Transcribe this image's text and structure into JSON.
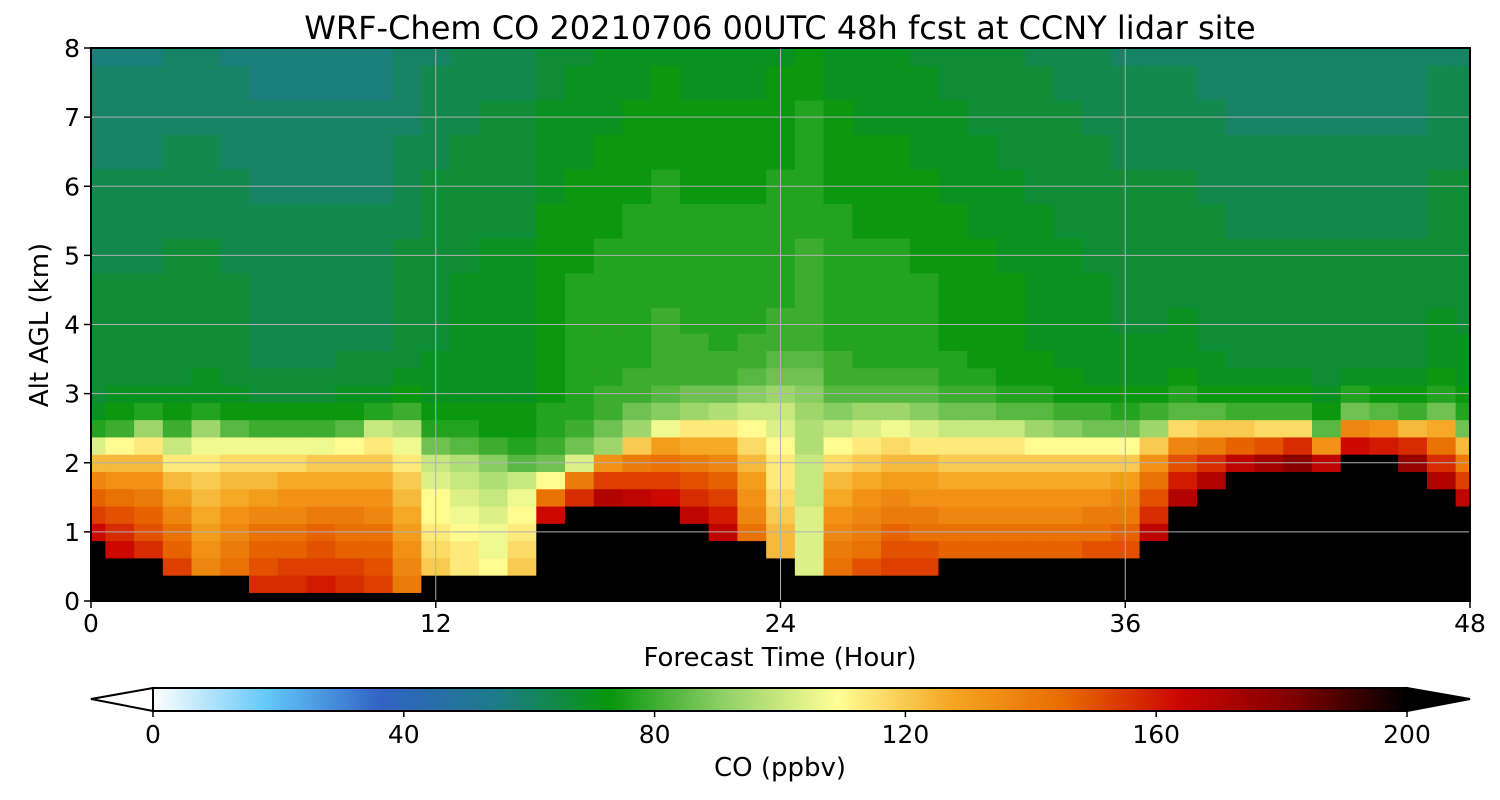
{
  "chart_data": {
    "type": "heatmap",
    "title": "WRF-Chem CO  20210706 00UTC 48h fcst at CCNY lidar site",
    "xlabel": "Forecast Time (Hour)",
    "ylabel": "Alt AGL (km)",
    "xlim": [
      0,
      48
    ],
    "ylim": [
      0,
      8
    ],
    "x_ticks": [
      "0",
      "12",
      "24",
      "36",
      "48"
    ],
    "y_ticks": [
      "0",
      "1",
      "2",
      "3",
      "4",
      "5",
      "6",
      "7",
      "8"
    ],
    "grid": true,
    "colorbar": {
      "label": "CO  (ppbv)",
      "range": [
        0,
        200
      ],
      "ticks": [
        "0",
        "40",
        "80",
        "120",
        "160",
        "200"
      ],
      "extend": "both",
      "orientation": "horizontal",
      "colors": [
        "#ffffff",
        "#63c8f8",
        "#3162c4",
        "#1d7b8a",
        "#06960c",
        "#8fd066",
        "#ffff96",
        "#f5a622",
        "#e86a00",
        "#cc0600",
        "#800000",
        "#000000"
      ]
    },
    "x": [
      0,
      1,
      2,
      3,
      4,
      5,
      6,
      7,
      8,
      9,
      10,
      11,
      12,
      13,
      14,
      15,
      16,
      17,
      18,
      19,
      20,
      21,
      22,
      23,
      24,
      25,
      26,
      27,
      28,
      29,
      30,
      31,
      32,
      33,
      34,
      35,
      36,
      37,
      38,
      39,
      40,
      41,
      42,
      43,
      44,
      45,
      46,
      47,
      48
    ],
    "y": [
      0,
      0.25,
      0.5,
      0.75,
      1,
      1.25,
      1.5,
      1.75,
      2,
      2.25,
      2.5,
      2.75,
      3,
      3.25,
      3.5,
      3.75,
      4,
      4.5,
      5,
      5.5,
      6,
      6.5,
      7,
      7.5,
      8
    ],
    "profile_summary": {
      "hours": [
        0,
        2,
        3,
        4,
        6,
        8,
        10,
        11,
        12,
        14,
        15,
        16,
        18,
        20,
        22,
        24,
        25,
        26,
        28,
        30,
        32,
        34,
        36,
        37,
        38,
        40,
        42,
        43,
        44,
        46,
        47,
        48
      ],
      "boundary_layer_top_km": [
        2.3,
        2.5,
        2.3,
        2.5,
        2.4,
        2.4,
        2.55,
        2.55,
        2.2,
        1.95,
        1.85,
        1.8,
        2.25,
        2.55,
        2.7,
        2.9,
        2.75,
        2.6,
        2.65,
        2.55,
        2.55,
        2.45,
        2.45,
        2.5,
        2.65,
        2.6,
        2.55,
        2.4,
        2.7,
        2.6,
        2.7,
        2.45
      ],
      "surface_core_top_km": [
        0.9,
        0.55,
        0.4,
        0.3,
        0.25,
        0.2,
        0.2,
        0.25,
        0.35,
        0.4,
        0.5,
        1.15,
        1.4,
        1.3,
        1.0,
        0.6,
        0.45,
        0.35,
        0.45,
        0.55,
        0.55,
        0.6,
        0.55,
        1.0,
        1.4,
        1.8,
        2.0,
        1.9,
        2.05,
        2.0,
        1.7,
        1.5
      ],
      "boundary_layer_co_ppbv": [
        165,
        160,
        155,
        140,
        155,
        160,
        155,
        140,
        120,
        110,
        120,
        170,
        175,
        172,
        165,
        125,
        105,
        145,
        155,
        150,
        150,
        150,
        155,
        165,
        175,
        180,
        180,
        175,
        180,
        178,
        172,
        165
      ],
      "free_troposphere_co_ppbv": [
        65,
        65,
        66,
        66,
        64,
        64,
        64,
        66,
        68,
        70,
        70,
        74,
        76,
        78,
        77,
        78,
        80,
        77,
        76,
        74,
        72,
        70,
        68,
        68,
        68,
        66,
        66,
        66,
        66,
        66,
        68,
        68
      ]
    }
  }
}
